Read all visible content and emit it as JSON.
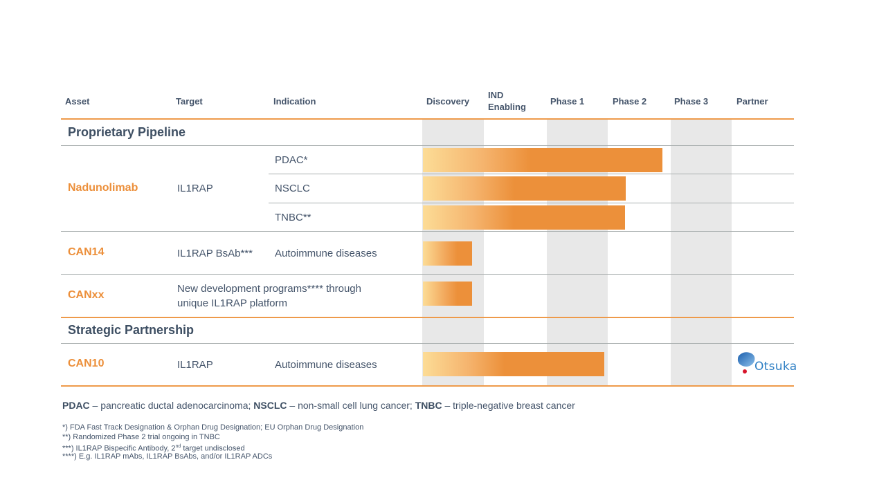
{
  "header": {
    "columns": {
      "asset": "Asset",
      "target": "Target",
      "indication": "Indication",
      "discovery": "Discovery",
      "ind_line1": "IND",
      "ind_line2": "Enabling",
      "phase1": "Phase 1",
      "phase2": "Phase 2",
      "phase3": "Phase 3",
      "partner": "Partner"
    }
  },
  "sections": {
    "proprietary": "Proprietary Pipeline",
    "strategic": "Strategic Partnership"
  },
  "rows": {
    "nadunolimab": {
      "asset": "Nadunolimab",
      "target": "IL1RAP",
      "indications": [
        "PDAC*",
        "NSCLC",
        "TNBC**"
      ]
    },
    "can14": {
      "asset": "CAN14",
      "target": "IL1RAP BsAb***",
      "indication": "Autoimmune diseases"
    },
    "canxx": {
      "asset": "CANxx",
      "target_line1": "New development programs**** through",
      "target_line2": "unique IL1RAP platform"
    },
    "can10": {
      "asset": "CAN10",
      "target": "IL1RAP",
      "indication": "Autoimmune diseases",
      "partner": "Otsuka"
    }
  },
  "legend": {
    "pdac_abbr": "PDAC",
    "pdac_def": " – pancreatic ductal adenocarcinoma; ",
    "nsclc_abbr": "NSCLC",
    "nsclc_def": " – non-small cell lung cancer; ",
    "tnbc_abbr": "TNBC",
    "tnbc_def": " – triple-negative breast cancer"
  },
  "footnotes": {
    "f1": "*) FDA Fast Track Designation & Orphan Drug Designation; EU Orphan Drug Designation",
    "f2": "**) Randomized Phase 2 trial ongoing in TNBC",
    "f3_pre": "***) IL1RAP Bispecific Antibody, 2",
    "f3_sup": "nd",
    "f3_post": " target undisclosed",
    "f4": "****) E.g. IL1RAP mAbs, IL1RAP BsAbs, and/or IL1RAP ADCs"
  },
  "colors": {
    "accent_orange": "#ec903a",
    "gradient_start": "#fcdc96",
    "stripe_gray": "#e8e8e8",
    "text_navy": "#44546a",
    "otsuka_blue": "#2e7fc4",
    "otsuka_red": "#d7142b"
  },
  "chart_data": {
    "type": "bar",
    "orientation": "horizontal",
    "title": "",
    "stages": [
      "Discovery",
      "IND Enabling",
      "Phase 1",
      "Phase 2",
      "Phase 3"
    ],
    "value_units": "stages completed (0–5 scale, each stage = 1)",
    "xlim": [
      0,
      5
    ],
    "categories": [
      "Nadunolimab – PDAC*",
      "Nadunolimab – NSCLC",
      "Nadunolimab – TNBC**",
      "CAN14 – Autoimmune diseases",
      "CANxx – New development programs",
      "CAN10 – Autoimmune diseases"
    ],
    "values": [
      3.87,
      3.29,
      3.27,
      0.81,
      0.81,
      2.94
    ],
    "partners": [
      "",
      "",
      "",
      "",
      "",
      "Otsuka"
    ]
  }
}
